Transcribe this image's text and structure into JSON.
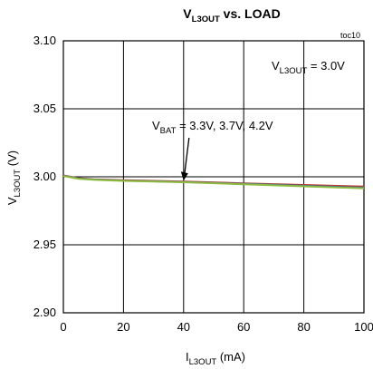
{
  "chart_data": {
    "type": "line",
    "title": {
      "main": "V",
      "sub": "L3OUT",
      "rest": " vs. LOAD"
    },
    "figure_id": "toc10",
    "xlabel": {
      "main": "I",
      "sub": "L3OUT",
      "rest": " (mA)"
    },
    "ylabel": {
      "main": "V",
      "sub": "L3OUT",
      "rest": " (V)"
    },
    "xlim": [
      0,
      100
    ],
    "ylim": [
      2.9,
      3.1
    ],
    "x_ticks": [
      "0",
      "20",
      "40",
      "60",
      "80",
      "100"
    ],
    "x_tick_values": [
      0,
      20,
      40,
      60,
      80,
      100
    ],
    "y_ticks": [
      "3.10",
      "3.05",
      "3.00",
      "2.95",
      "2.90"
    ],
    "y_tick_values": [
      3.1,
      3.05,
      3.0,
      2.95,
      2.9
    ],
    "grid": true,
    "annotations": {
      "condition": {
        "main": "V",
        "sub": "L3OUT",
        "rest": " = 3.0V"
      },
      "series_label": {
        "main": "V",
        "sub": "BAT",
        "rest": " = 3.3V, 3.7V, 4.2V",
        "arrow_to": [
          40,
          2.9965
        ]
      }
    },
    "series": [
      {
        "color": "#c0392b",
        "x": [
          0,
          5,
          10,
          20,
          40,
          60,
          80,
          100
        ],
        "y": [
          3.001,
          2.999,
          2.9982,
          2.9975,
          2.9965,
          2.9952,
          2.994,
          2.9928
        ]
      },
      {
        "color": "#3b6ea5",
        "x": [
          0,
          5,
          10,
          20,
          40,
          60,
          80,
          100
        ],
        "y": [
          3.0008,
          2.9988,
          2.998,
          2.9972,
          2.9962,
          2.9948,
          2.9934,
          2.992
        ]
      },
      {
        "color": "#8dbb3c",
        "x": [
          0,
          5,
          10,
          20,
          40,
          60,
          80,
          100
        ],
        "y": [
          3.0006,
          2.9986,
          2.9978,
          2.997,
          2.996,
          2.9945,
          2.993,
          2.9915
        ]
      }
    ]
  }
}
